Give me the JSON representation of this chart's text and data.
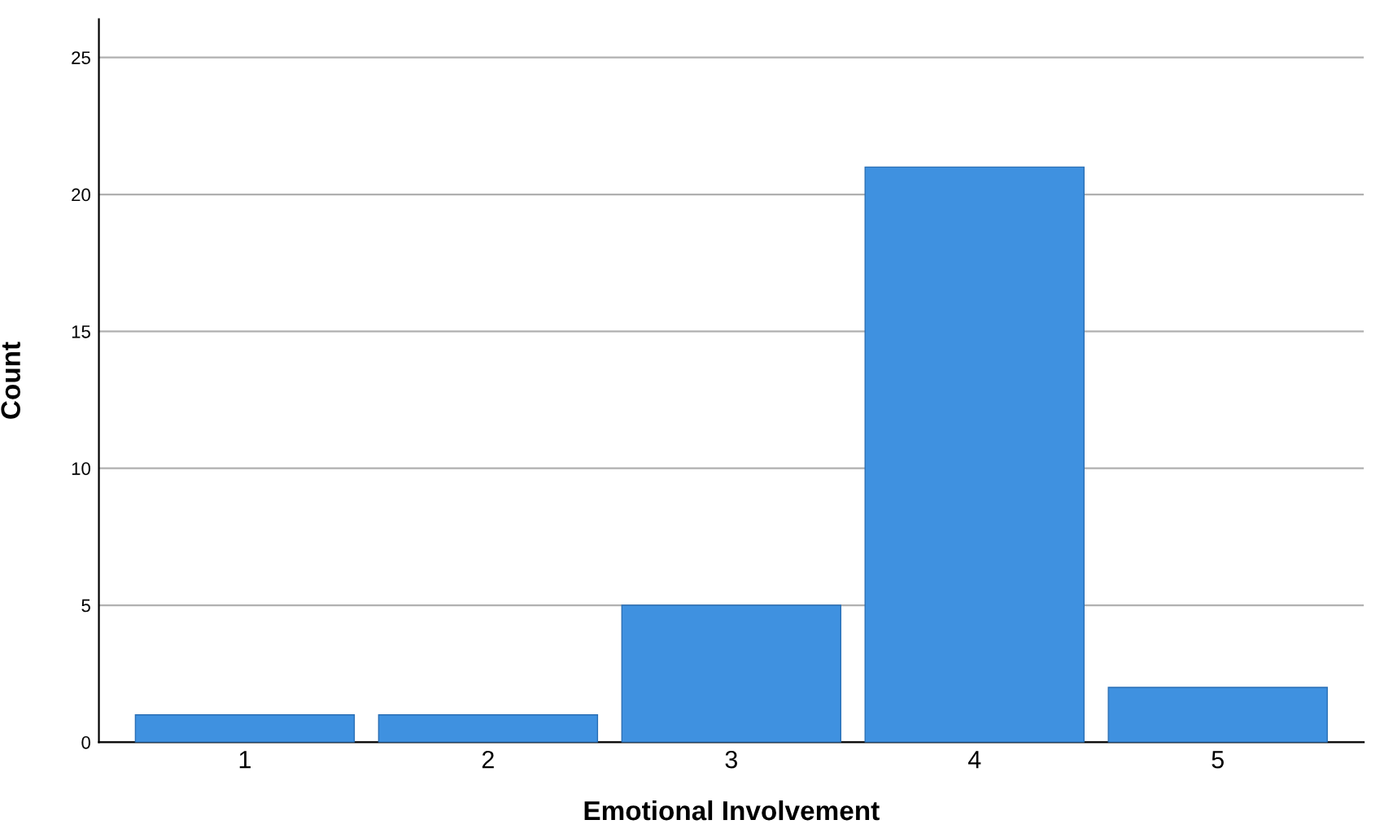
{
  "chart_data": {
    "type": "bar",
    "xlabel": "Emotional Involvement",
    "ylabel": "Count",
    "categories": [
      "1",
      "2",
      "3",
      "4",
      "5"
    ],
    "values": [
      1,
      1,
      5,
      21,
      2
    ],
    "color": "#3f91e0",
    "ylim": [
      0,
      26.4
    ],
    "yticks": [
      0,
      5,
      10,
      15,
      20,
      25
    ],
    "grid": "y"
  }
}
